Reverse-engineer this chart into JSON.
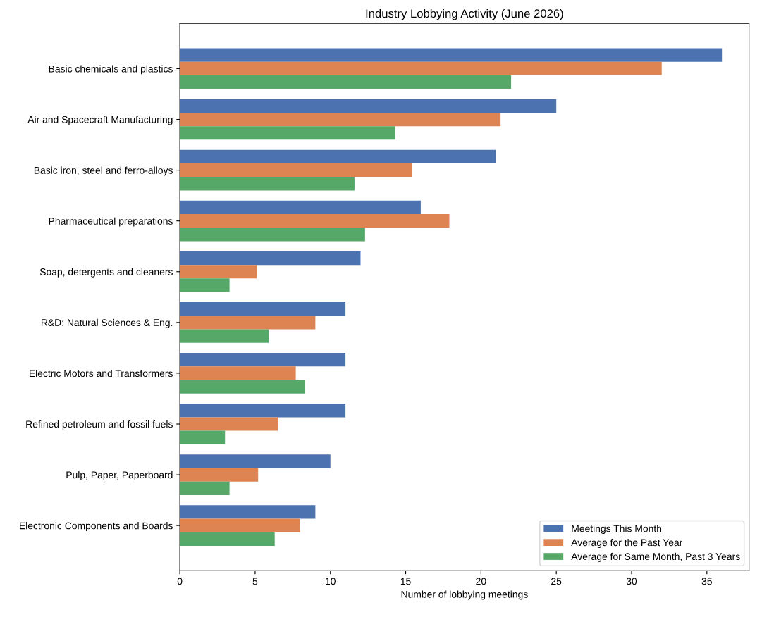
{
  "chart_data": {
    "type": "bar",
    "orientation": "horizontal",
    "title": "Industry Lobbying Activity (June 2026)",
    "xlabel": "Number of lobbying meetings",
    "categories": [
      "Basic chemicals and plastics",
      "Air and Spacecraft Manufacturing",
      "Basic iron, steel and ferro-alloys",
      "Pharmaceutical preparations",
      "Soap, detergents and cleaners",
      "R&D: Natural Sciences & Eng.",
      "Electric Motors and Transformers",
      "Refined petroleum and fossil fuels",
      "Pulp, Paper, Paperboard",
      "Electronic Components and Boards"
    ],
    "series": [
      {
        "name": "Meetings This Month",
        "color": "#4c72b0",
        "values": [
          36,
          25,
          21,
          16,
          12,
          11,
          11,
          11,
          10,
          9
        ]
      },
      {
        "name": "Average for the Past Year",
        "color": "#dd8452",
        "values": [
          32,
          21.3,
          15.4,
          17.9,
          5.1,
          9.0,
          7.7,
          6.5,
          5.2,
          8.0
        ]
      },
      {
        "name": "Average for Same Month, Past 3 Years",
        "color": "#55a868",
        "values": [
          22,
          14.3,
          11.6,
          12.3,
          3.3,
          5.9,
          8.3,
          3.0,
          3.3,
          6.3
        ]
      }
    ],
    "xlim": [
      0,
      37.8
    ],
    "xticks": [
      0,
      5,
      10,
      15,
      20,
      25,
      30,
      35
    ],
    "grid": false,
    "legend": "lower right"
  }
}
